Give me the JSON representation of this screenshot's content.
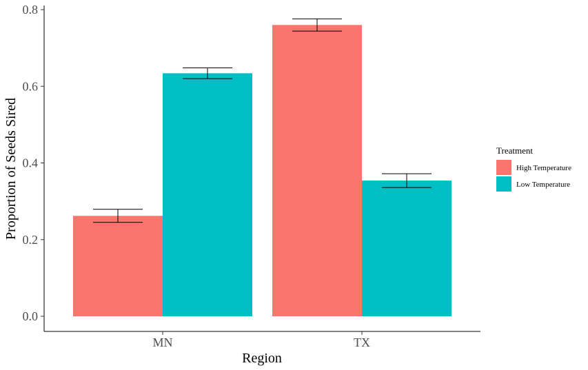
{
  "chart_data": {
    "type": "bar",
    "xlabel": "Region",
    "ylabel": "Proportion of Seeds Sired",
    "categories": [
      "MN",
      "TX"
    ],
    "ylim": [
      0,
      0.8
    ],
    "yticks": [
      "0.0",
      "0.2",
      "0.4",
      "0.6",
      "0.8"
    ],
    "grid": false,
    "legend": {
      "title": "Treatment",
      "placement": "right"
    },
    "series": [
      {
        "name": "High Temperature",
        "color": "#F8766D",
        "values": [
          0.262,
          0.76
        ],
        "error": [
          0.017,
          0.016
        ]
      },
      {
        "name": "Low Temperature",
        "color": "#00BFC4",
        "values": [
          0.634,
          0.354
        ],
        "error": [
          0.014,
          0.018
        ]
      }
    ]
  }
}
